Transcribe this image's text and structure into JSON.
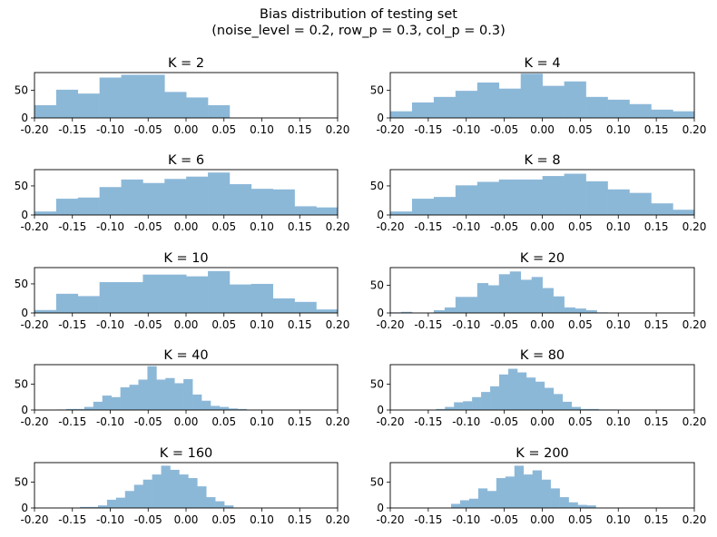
{
  "title_line1": "Bias distribution of testing set",
  "title_line2": "(noise_level = 0.2, row_p = 0.3, col_p = 0.3)",
  "bar_color": "#8cb8d8",
  "chart_data": [
    {
      "type": "bar",
      "title": "K = 2",
      "bin_start": -0.2,
      "bin_width": 0.0286,
      "xlim": [
        -0.2,
        0.2
      ],
      "ylim": [
        0,
        82
      ],
      "xticks": [
        "-0.20",
        "-0.15",
        "-0.10",
        "-0.05",
        "0.00",
        "0.05",
        "0.10",
        "0.15",
        "0.20"
      ],
      "yticks": [
        "0",
        "50"
      ],
      "values": [
        23,
        51,
        44,
        73,
        78,
        78,
        47,
        37,
        23
      ]
    },
    {
      "type": "bar",
      "title": "K = 4",
      "bin_start": -0.2,
      "bin_width": 0.0286,
      "xlim": [
        -0.2,
        0.2
      ],
      "ylim": [
        0,
        82
      ],
      "xticks": [
        "-0.20",
        "-0.15",
        "-0.10",
        "-0.05",
        "0.00",
        "0.05",
        "0.10",
        "0.15",
        "0.20"
      ],
      "yticks": [
        "0",
        "50"
      ],
      "values": [
        12,
        28,
        38,
        49,
        64,
        53,
        80,
        58,
        66,
        38,
        33,
        25,
        15,
        12
      ]
    },
    {
      "type": "bar",
      "title": "K = 6",
      "bin_start": -0.2,
      "bin_width": 0.0286,
      "xlim": [
        -0.2,
        0.2
      ],
      "ylim": [
        0,
        78
      ],
      "xticks": [
        "-0.20",
        "-0.15",
        "-0.10",
        "-0.05",
        "0.00",
        "0.05",
        "0.10",
        "0.15",
        "0.20"
      ],
      "yticks": [
        "0",
        "50"
      ],
      "values": [
        6,
        28,
        30,
        48,
        61,
        55,
        62,
        66,
        73,
        53,
        45,
        44,
        15,
        13,
        9
      ]
    },
    {
      "type": "bar",
      "title": "K = 8",
      "bin_start": -0.2,
      "bin_width": 0.0286,
      "xlim": [
        -0.2,
        0.2
      ],
      "ylim": [
        0,
        78
      ],
      "xticks": [
        "-0.20",
        "-0.15",
        "-0.10",
        "-0.05",
        "0.00",
        "0.05",
        "0.10",
        "0.15",
        "0.20"
      ],
      "yticks": [
        "0",
        "50"
      ],
      "values": [
        6,
        28,
        31,
        51,
        57,
        61,
        61,
        67,
        71,
        58,
        44,
        38,
        20,
        9,
        9
      ]
    },
    {
      "type": "bar",
      "title": "K = 10",
      "bin_start": -0.2,
      "bin_width": 0.0286,
      "xlim": [
        -0.2,
        0.2
      ],
      "ylim": [
        0,
        78
      ],
      "xticks": [
        "-0.20",
        "-0.15",
        "-0.10",
        "-0.05",
        "0.00",
        "0.05",
        "0.10",
        "0.15",
        "0.20"
      ],
      "yticks": [
        "0",
        "50"
      ],
      "values": [
        5,
        33,
        29,
        53,
        53,
        66,
        66,
        63,
        72,
        49,
        50,
        25,
        19,
        6
      ]
    },
    {
      "type": "bar",
      "title": "K = 20",
      "bin_start": -0.2,
      "bin_width": 0.0143,
      "xlim": [
        -0.2,
        0.2
      ],
      "ylim": [
        0,
        82
      ],
      "xticks": [
        "-0.20",
        "-0.15",
        "-0.10",
        "-0.05",
        "0.00",
        "0.05",
        "0.10",
        "0.15",
        "0.20"
      ],
      "yticks": [
        "0",
        "50"
      ],
      "values": [
        1,
        2,
        0,
        0,
        5,
        10,
        29,
        29,
        54,
        50,
        70,
        75,
        60,
        65,
        45,
        30,
        10,
        8,
        5,
        1
      ]
    },
    {
      "type": "bar",
      "title": "K = 40",
      "bin_start": -0.17,
      "bin_width": 0.0119,
      "xlim": [
        -0.2,
        0.2
      ],
      "ylim": [
        0,
        88
      ],
      "xticks": [
        "-0.20",
        "-0.15",
        "-0.10",
        "-0.05",
        "0.00",
        "0.05",
        "0.10",
        "0.15",
        "0.20"
      ],
      "yticks": [
        "0",
        "50"
      ],
      "values": [
        1,
        2,
        2,
        6,
        16,
        28,
        25,
        44,
        49,
        59,
        85,
        59,
        62,
        52,
        60,
        30,
        18,
        8,
        6,
        3,
        2
      ]
    },
    {
      "type": "bar",
      "title": "K = 80",
      "bin_start": -0.14,
      "bin_width": 0.0119,
      "xlim": [
        -0.2,
        0.2
      ],
      "ylim": [
        0,
        88
      ],
      "xticks": [
        "-0.20",
        "-0.15",
        "-0.10",
        "-0.05",
        "0.00",
        "0.05",
        "0.10",
        "0.15",
        "0.20"
      ],
      "yticks": [
        "0",
        "50"
      ],
      "values": [
        2,
        6,
        15,
        17,
        25,
        35,
        46,
        69,
        80,
        73,
        63,
        55,
        43,
        31,
        16,
        6,
        2,
        2,
        1,
        1
      ]
    },
    {
      "type": "bar",
      "title": "K = 160",
      "bin_start": -0.14,
      "bin_width": 0.0119,
      "xlim": [
        -0.2,
        0.2
      ],
      "ylim": [
        0,
        88
      ],
      "xticks": [
        "-0.20",
        "-0.15",
        "-0.10",
        "-0.05",
        "0.00",
        "0.05",
        "0.10",
        "0.15",
        "0.20"
      ],
      "yticks": [
        "0",
        "50"
      ],
      "values": [
        2,
        2,
        5,
        16,
        20,
        33,
        45,
        55,
        65,
        82,
        74,
        65,
        58,
        42,
        21,
        13,
        5
      ]
    },
    {
      "type": "bar",
      "title": "K = 200",
      "bin_start": -0.12,
      "bin_width": 0.0119,
      "xlim": [
        -0.2,
        0.2
      ],
      "ylim": [
        0,
        88
      ],
      "xticks": [
        "-0.20",
        "-0.15",
        "-0.10",
        "-0.05",
        "0.00",
        "0.05",
        "0.10",
        "0.15",
        "0.20"
      ],
      "yticks": [
        "0",
        "50"
      ],
      "values": [
        8,
        15,
        18,
        38,
        33,
        58,
        61,
        82,
        65,
        73,
        55,
        38,
        21,
        11,
        6,
        5
      ]
    }
  ]
}
